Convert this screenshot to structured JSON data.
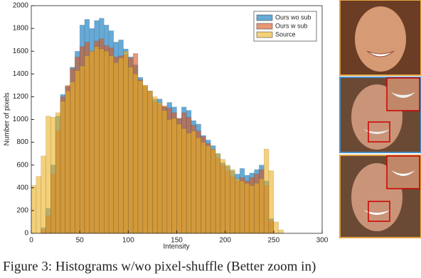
{
  "chart_data": {
    "type": "histogram",
    "xlabel": "Intensity",
    "ylabel": "Number of pixels",
    "bins": [
      0,
      5,
      10,
      15,
      20,
      25,
      30,
      35,
      40,
      45,
      50,
      55,
      60,
      65,
      70,
      75,
      80,
      85,
      90,
      95,
      100,
      105,
      110,
      115,
      120,
      125,
      130,
      135,
      140,
      145,
      150,
      155,
      160,
      165,
      170,
      175,
      180,
      185,
      190,
      195,
      200,
      205,
      210,
      215,
      220,
      225,
      230,
      235,
      240,
      245,
      250,
      255,
      260
    ],
    "series": [
      {
        "name": "Ours wo sub",
        "color": "#0072BD",
        "values": [
          0,
          0,
          50,
          220,
          600,
          1030,
          1220,
          1290,
          1460,
          1600,
          1830,
          1880,
          1800,
          1870,
          1890,
          1830,
          1780,
          1680,
          1700,
          1620,
          1550,
          1480,
          1370,
          1290,
          1250,
          1180,
          1180,
          1110,
          1150,
          1110,
          1010,
          1110,
          1080,
          990,
          960,
          860,
          820,
          770,
          700,
          620,
          590,
          550,
          520,
          570,
          510,
          530,
          560,
          600,
          460,
          130,
          0,
          0
        ]
      },
      {
        "name": "Ours w sub",
        "color": "#D95319",
        "values": [
          0,
          0,
          30,
          150,
          520,
          900,
          1200,
          1300,
          1450,
          1550,
          1640,
          1680,
          1600,
          1690,
          1710,
          1650,
          1630,
          1550,
          1560,
          1570,
          1540,
          1580,
          1350,
          1300,
          1250,
          1160,
          1130,
          1120,
          1100,
          1060,
          1010,
          1060,
          1020,
          950,
          900,
          850,
          790,
          740,
          660,
          600,
          550,
          500,
          460,
          490,
          460,
          490,
          520,
          560,
          420,
          110,
          0,
          0
        ]
      },
      {
        "name": "Source",
        "color": "#EDB120",
        "values": [
          420,
          500,
          680,
          1030,
          1020,
          1060,
          1160,
          1250,
          1330,
          1430,
          1470,
          1560,
          1600,
          1640,
          1620,
          1600,
          1560,
          1500,
          1540,
          1600,
          1460,
          1400,
          1340,
          1300,
          1250,
          1200,
          1150,
          1080,
          1000,
          1010,
          960,
          920,
          880,
          900,
          840,
          800,
          770,
          740,
          700,
          650,
          600,
          560,
          480,
          460,
          440,
          420,
          440,
          480,
          740,
          550,
          100,
          30
        ]
      }
    ],
    "xlim": [
      0,
      300
    ],
    "ylim": [
      0,
      2000
    ],
    "xticks": [
      0,
      50,
      100,
      150,
      200,
      250,
      300
    ],
    "yticks": [
      0,
      200,
      400,
      600,
      800,
      1000,
      1200,
      1400,
      1600,
      1800,
      2000
    ],
    "legend": "upper right"
  },
  "caption": "Figure 3: Histograms w/wo pixel-shuffle (Better zoom in)"
}
